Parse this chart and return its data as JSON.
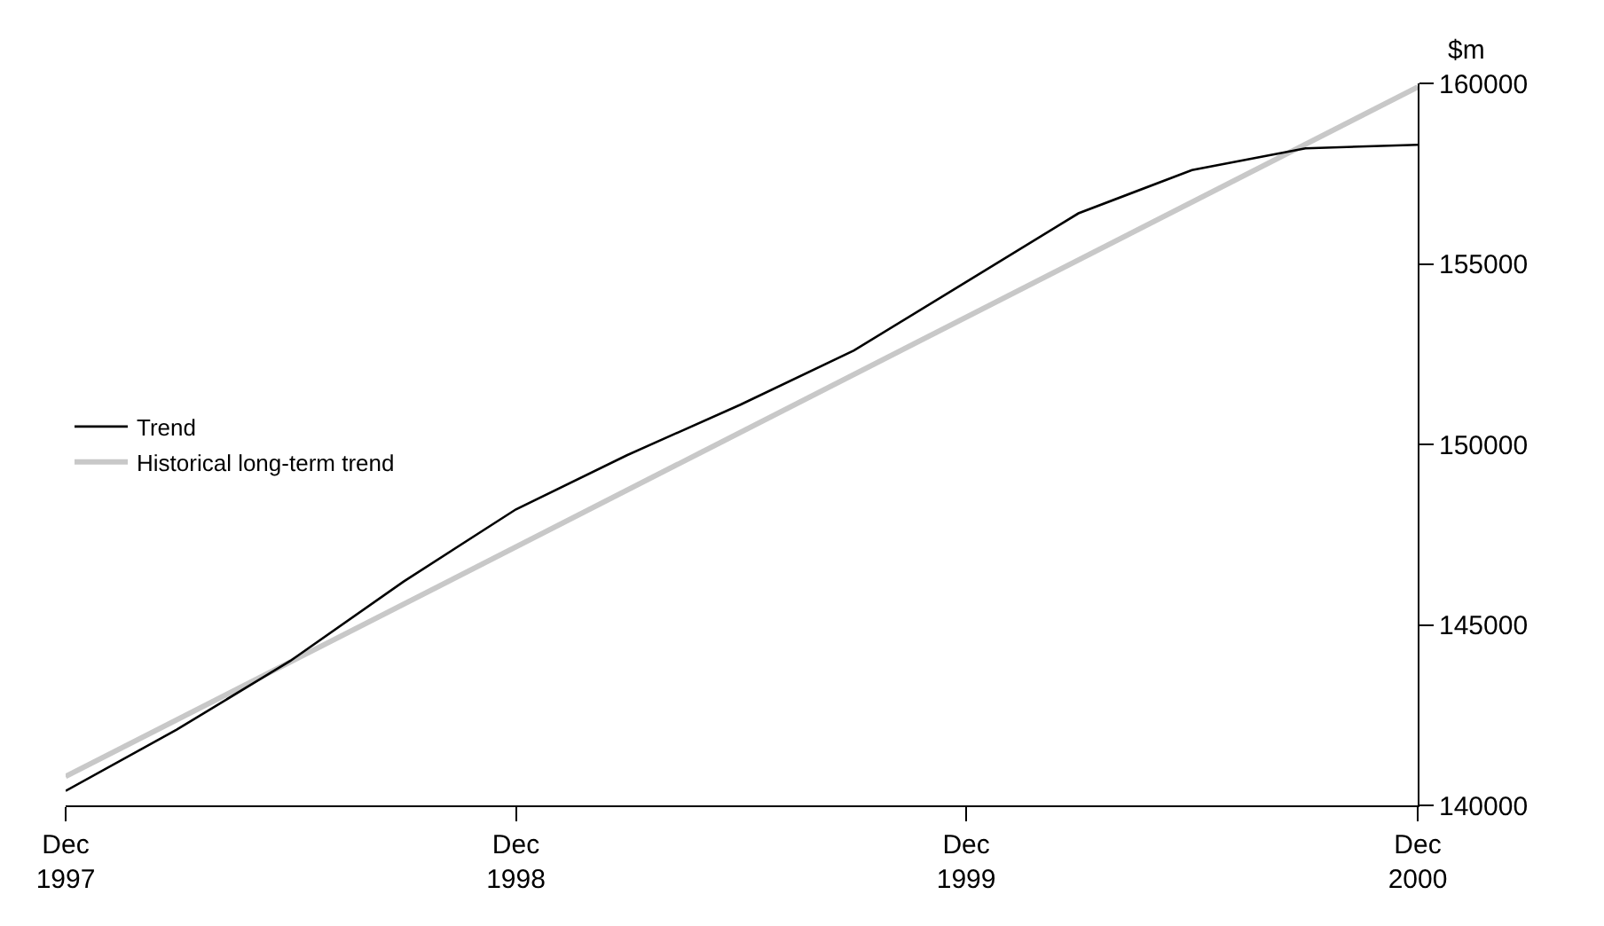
{
  "chart_data": {
    "type": "line",
    "ylabel": "$m",
    "x": [
      "1997-12",
      "1998-03",
      "1998-06",
      "1998-09",
      "1998-12",
      "1999-03",
      "1999-06",
      "1999-09",
      "1999-12",
      "2000-03",
      "2000-06",
      "2000-09",
      "2000-12"
    ],
    "series": [
      {
        "name": "Trend",
        "color": "#000000",
        "values": [
          140400,
          142100,
          144000,
          146200,
          148200,
          149700,
          151100,
          152600,
          154500,
          156400,
          157600,
          158200,
          158300
        ]
      },
      {
        "name": "Historical long-term trend",
        "color": "#c8c8c8",
        "x": [
          "1997-12",
          "2000-12"
        ],
        "values": [
          140800,
          159900
        ]
      }
    ],
    "xlim": [
      "1997-12",
      "2000-12"
    ],
    "xticks": [
      {
        "value": "1997-12",
        "label": "Dec\n1997"
      },
      {
        "value": "1998-12",
        "label": "Dec\n1998"
      },
      {
        "value": "1999-12",
        "label": "Dec\n1999"
      },
      {
        "value": "2000-12",
        "label": "Dec\n2000"
      }
    ],
    "ylim": [
      140000,
      160000
    ],
    "yticks": [
      140000,
      145000,
      150000,
      155000,
      160000
    ],
    "legend": "left",
    "marker": "none",
    "line_style": "solid"
  }
}
